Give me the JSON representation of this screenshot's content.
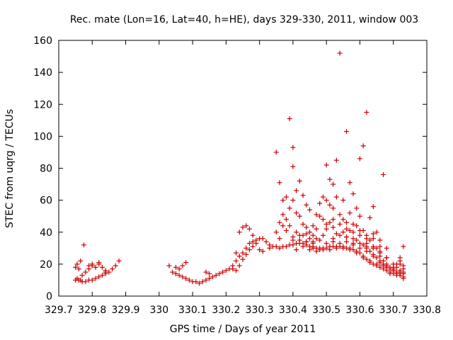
{
  "chart_data": {
    "type": "scatter",
    "title": "Rec. mate (Lon=16, Lat=40, h=HE), days 329-330, 2011, window 003",
    "xlabel": "GPS time / Days of year 2011",
    "ylabel": "STEC from uqrg / TECUs",
    "xlim": [
      329.7,
      330.8
    ],
    "ylim": [
      0,
      160
    ],
    "x_ticks": [
      "329.7",
      "329.8",
      "329.9",
      "330",
      "330.1",
      "330.2",
      "330.3",
      "330.4",
      "330.5",
      "330.6",
      "330.7",
      "330.8"
    ],
    "y_ticks": [
      "0",
      "20",
      "40",
      "60",
      "80",
      "100",
      "120",
      "140",
      "160"
    ],
    "grid": false,
    "legend": "none",
    "marker": "+",
    "color": "#cc0000",
    "points": [
      [
        329.75,
        10
      ],
      [
        329.755,
        11
      ],
      [
        329.76,
        10
      ],
      [
        329.765,
        10
      ],
      [
        329.77,
        9
      ],
      [
        329.78,
        9
      ],
      [
        329.79,
        10
      ],
      [
        329.8,
        10
      ],
      [
        329.81,
        11
      ],
      [
        329.82,
        12
      ],
      [
        329.83,
        13
      ],
      [
        329.84,
        14
      ],
      [
        329.75,
        18
      ],
      [
        329.755,
        20
      ],
      [
        329.76,
        17
      ],
      [
        329.765,
        22
      ],
      [
        329.77,
        13
      ],
      [
        329.775,
        32
      ],
      [
        329.78,
        15
      ],
      [
        329.79,
        17
      ],
      [
        329.8,
        19
      ],
      [
        329.81,
        18
      ],
      [
        329.82,
        20
      ],
      [
        329.83,
        18
      ],
      [
        329.84,
        16
      ],
      [
        329.85,
        15
      ],
      [
        329.86,
        17
      ],
      [
        329.87,
        19
      ],
      [
        329.88,
        22
      ],
      [
        329.79,
        19
      ],
      [
        329.8,
        20
      ],
      [
        329.82,
        21
      ],
      [
        329.84,
        15
      ],
      [
        330.03,
        19
      ],
      [
        330.04,
        15
      ],
      [
        330.05,
        14
      ],
      [
        330.06,
        13
      ],
      [
        330.07,
        12
      ],
      [
        330.08,
        11
      ],
      [
        330.09,
        10
      ],
      [
        330.1,
        9
      ],
      [
        330.11,
        9
      ],
      [
        330.12,
        8
      ],
      [
        330.13,
        9
      ],
      [
        330.14,
        10
      ],
      [
        330.15,
        11
      ],
      [
        330.16,
        12
      ],
      [
        330.05,
        18
      ],
      [
        330.06,
        17
      ],
      [
        330.07,
        19
      ],
      [
        330.08,
        21
      ],
      [
        330.14,
        15
      ],
      [
        330.15,
        14
      ],
      [
        330.17,
        13
      ],
      [
        330.18,
        14
      ],
      [
        330.19,
        15
      ],
      [
        330.2,
        16
      ],
      [
        330.21,
        17
      ],
      [
        330.22,
        19
      ],
      [
        330.23,
        22
      ],
      [
        330.24,
        25
      ],
      [
        330.25,
        27
      ],
      [
        330.26,
        30
      ],
      [
        330.27,
        33
      ],
      [
        330.28,
        34
      ],
      [
        330.29,
        35
      ],
      [
        330.3,
        36
      ],
      [
        330.31,
        36
      ],
      [
        330.32,
        34
      ],
      [
        330.33,
        32
      ],
      [
        330.23,
        16
      ],
      [
        330.24,
        19
      ],
      [
        330.25,
        23
      ],
      [
        330.26,
        26
      ],
      [
        330.27,
        29
      ],
      [
        330.28,
        31
      ],
      [
        330.29,
        33
      ],
      [
        330.3,
        29
      ],
      [
        330.31,
        28
      ],
      [
        330.24,
        40
      ],
      [
        330.25,
        43
      ],
      [
        330.26,
        44
      ],
      [
        330.27,
        42
      ],
      [
        330.28,
        38
      ],
      [
        330.22,
        17
      ],
      [
        330.23,
        27
      ],
      [
        330.33,
        30
      ],
      [
        330.34,
        31
      ],
      [
        330.35,
        31
      ],
      [
        330.36,
        30
      ],
      [
        330.37,
        31
      ],
      [
        330.38,
        31
      ],
      [
        330.39,
        32
      ],
      [
        330.4,
        32
      ],
      [
        330.41,
        33
      ],
      [
        330.42,
        33
      ],
      [
        330.43,
        33
      ],
      [
        330.44,
        32
      ],
      [
        330.45,
        31
      ],
      [
        330.46,
        30
      ],
      [
        330.47,
        30
      ],
      [
        330.48,
        30
      ],
      [
        330.49,
        30
      ],
      [
        330.5,
        30
      ],
      [
        330.51,
        31
      ],
      [
        330.52,
        31
      ],
      [
        330.53,
        31
      ],
      [
        330.54,
        31
      ],
      [
        330.55,
        30
      ],
      [
        330.56,
        30
      ],
      [
        330.57,
        29
      ],
      [
        330.58,
        29
      ],
      [
        330.59,
        28
      ],
      [
        330.6,
        27
      ],
      [
        330.61,
        25
      ],
      [
        330.62,
        23
      ],
      [
        330.63,
        21
      ],
      [
        330.64,
        20
      ],
      [
        330.65,
        19
      ],
      [
        330.66,
        18
      ],
      [
        330.67,
        17
      ],
      [
        330.68,
        16
      ],
      [
        330.69,
        15
      ],
      [
        330.7,
        14
      ],
      [
        330.71,
        14
      ],
      [
        330.72,
        13
      ],
      [
        330.73,
        12
      ],
      [
        330.35,
        90
      ],
      [
        330.36,
        71
      ],
      [
        330.37,
        60
      ],
      [
        330.38,
        62
      ],
      [
        330.39,
        111
      ],
      [
        330.4,
        93
      ],
      [
        330.4,
        81
      ],
      [
        330.41,
        66
      ],
      [
        330.42,
        72
      ],
      [
        330.43,
        63
      ],
      [
        330.44,
        57
      ],
      [
        330.45,
        54
      ],
      [
        330.46,
        44
      ],
      [
        330.47,
        51
      ],
      [
        330.48,
        58
      ],
      [
        330.49,
        62
      ],
      [
        330.5,
        82
      ],
      [
        330.51,
        73
      ],
      [
        330.52,
        70
      ],
      [
        330.53,
        85
      ],
      [
        330.54,
        152
      ],
      [
        330.55,
        60
      ],
      [
        330.56,
        103
      ],
      [
        330.57,
        71
      ],
      [
        330.58,
        64
      ],
      [
        330.59,
        55
      ],
      [
        330.6,
        86
      ],
      [
        330.61,
        94
      ],
      [
        330.62,
        115
      ],
      [
        330.63,
        49
      ],
      [
        330.64,
        56
      ],
      [
        330.65,
        40
      ],
      [
        330.66,
        31
      ],
      [
        330.67,
        76
      ],
      [
        330.68,
        24
      ],
      [
        330.35,
        40
      ],
      [
        330.36,
        46
      ],
      [
        330.37,
        51
      ],
      [
        330.38,
        48
      ],
      [
        330.39,
        55
      ],
      [
        330.4,
        60
      ],
      [
        330.41,
        52
      ],
      [
        330.42,
        50
      ],
      [
        330.43,
        45
      ],
      [
        330.44,
        43
      ],
      [
        330.45,
        40
      ],
      [
        330.46,
        38
      ],
      [
        330.47,
        42
      ],
      [
        330.48,
        50
      ],
      [
        330.49,
        48
      ],
      [
        330.5,
        60
      ],
      [
        330.51,
        57
      ],
      [
        330.52,
        55
      ],
      [
        330.53,
        62
      ],
      [
        330.54,
        51
      ],
      [
        330.55,
        48
      ],
      [
        330.56,
        46
      ],
      [
        330.57,
        52
      ],
      [
        330.58,
        45
      ],
      [
        330.59,
        44
      ],
      [
        330.6,
        50
      ],
      [
        330.61,
        41
      ],
      [
        330.62,
        38
      ],
      [
        330.63,
        35
      ],
      [
        330.64,
        36
      ],
      [
        330.65,
        30
      ],
      [
        330.66,
        27
      ],
      [
        330.67,
        22
      ],
      [
        330.68,
        20
      ],
      [
        330.69,
        18
      ],
      [
        330.7,
        17
      ],
      [
        330.71,
        18
      ],
      [
        330.72,
        22
      ],
      [
        330.73,
        31
      ],
      [
        330.36,
        36
      ],
      [
        330.37,
        44
      ],
      [
        330.38,
        41
      ],
      [
        330.39,
        44
      ],
      [
        330.4,
        37
      ],
      [
        330.41,
        40
      ],
      [
        330.42,
        35
      ],
      [
        330.43,
        38
      ],
      [
        330.44,
        39
      ],
      [
        330.45,
        36
      ],
      [
        330.46,
        34
      ],
      [
        330.47,
        36
      ],
      [
        330.48,
        35
      ],
      [
        330.49,
        38
      ],
      [
        330.5,
        42
      ],
      [
        330.51,
        46
      ],
      [
        330.52,
        43
      ],
      [
        330.53,
        39
      ],
      [
        330.54,
        45
      ],
      [
        330.55,
        40
      ],
      [
        330.56,
        37
      ],
      [
        330.57,
        41
      ],
      [
        330.58,
        36
      ],
      [
        330.59,
        35
      ],
      [
        330.6,
        33
      ],
      [
        330.61,
        32
      ],
      [
        330.62,
        30
      ],
      [
        330.63,
        28
      ],
      [
        330.64,
        26
      ],
      [
        330.65,
        24
      ],
      [
        330.66,
        22
      ],
      [
        330.67,
        20
      ],
      [
        330.68,
        18
      ],
      [
        330.69,
        17
      ],
      [
        330.7,
        16
      ],
      [
        330.71,
        15
      ],
      [
        330.72,
        15
      ],
      [
        330.73,
        17
      ],
      [
        330.4,
        35
      ],
      [
        330.42,
        38
      ],
      [
        330.44,
        34
      ],
      [
        330.46,
        33
      ],
      [
        330.48,
        29
      ],
      [
        330.5,
        33
      ],
      [
        330.52,
        34
      ],
      [
        330.54,
        33
      ],
      [
        330.56,
        34
      ],
      [
        330.58,
        32
      ],
      [
        330.6,
        30
      ],
      [
        330.62,
        28
      ],
      [
        330.64,
        25
      ],
      [
        330.66,
        21
      ],
      [
        330.68,
        18
      ],
      [
        330.7,
        16
      ],
      [
        330.72,
        14
      ],
      [
        330.41,
        29
      ],
      [
        330.43,
        31
      ],
      [
        330.45,
        29
      ],
      [
        330.47,
        28
      ],
      [
        330.49,
        29
      ],
      [
        330.51,
        29
      ],
      [
        330.53,
        30
      ],
      [
        330.55,
        31
      ],
      [
        330.57,
        30
      ],
      [
        330.59,
        27
      ],
      [
        330.61,
        24
      ],
      [
        330.63,
        22
      ],
      [
        330.65,
        20
      ],
      [
        330.67,
        19
      ],
      [
        330.69,
        14
      ],
      [
        330.71,
        13
      ],
      [
        330.73,
        11
      ],
      [
        330.44,
        34
      ],
      [
        330.46,
        31
      ],
      [
        330.52,
        36
      ],
      [
        330.56,
        37
      ],
      [
        330.58,
        33
      ],
      [
        330.62,
        31
      ],
      [
        330.64,
        30
      ],
      [
        330.66,
        25
      ],
      [
        330.68,
        19
      ],
      [
        330.7,
        18
      ],
      [
        330.72,
        16
      ],
      [
        330.73,
        14
      ],
      [
        330.56,
        42
      ],
      [
        330.58,
        40
      ],
      [
        330.6,
        38
      ],
      [
        330.62,
        33
      ],
      [
        330.64,
        31
      ],
      [
        330.66,
        28
      ],
      [
        330.68,
        24
      ],
      [
        330.7,
        20
      ],
      [
        330.72,
        20
      ],
      [
        330.73,
        19
      ],
      [
        330.5,
        45
      ],
      [
        330.52,
        48
      ],
      [
        330.54,
        38
      ],
      [
        330.6,
        41
      ],
      [
        330.62,
        36
      ],
      [
        330.64,
        39
      ],
      [
        330.66,
        35
      ],
      [
        330.68,
        30
      ],
      [
        330.71,
        20
      ],
      [
        330.72,
        24
      ],
      [
        330.73,
        15
      ]
    ]
  }
}
